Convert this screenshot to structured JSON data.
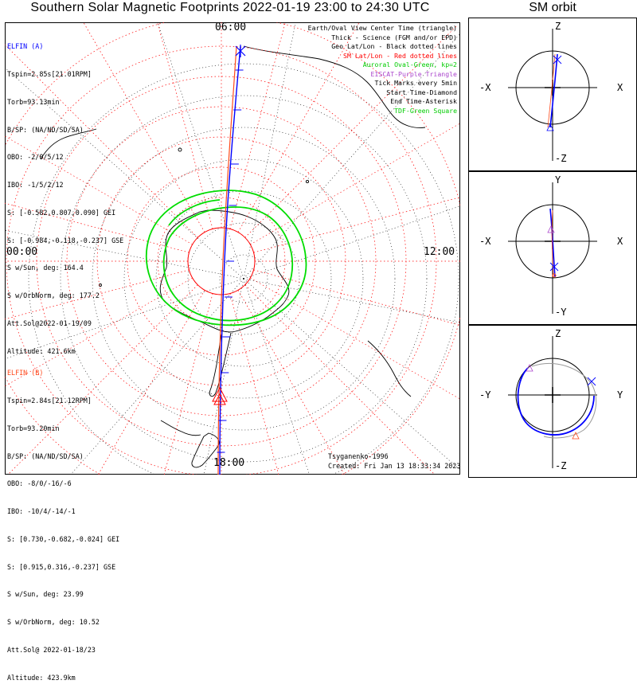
{
  "title": "Southern Solar Magnetic Footprints 2022-01-19 23:00 to 24:30 UTC",
  "sm_orbit_title": "SM orbit",
  "elfin_a": {
    "name": "ELFIN (A)",
    "color": "#0000ff",
    "lines": [
      "Tspin=2.85s[21.01RPM]",
      "Torb=93.13min",
      "B/SP: (NA/ND/SD/SA)",
      "OBO: -2/0/5/12",
      "IBO: -1/5/2/12",
      "S: [-0.582,0.807,0.090] GEI",
      "S: [-0.984,-0.118,-0.237] GSE",
      "S w/Sun, deg: 164.4",
      "S w/OrbNorm, deg: 177.2",
      "Att.Sol@2022-01-19/09",
      "Altitude: 421.6km"
    ]
  },
  "elfin_b": {
    "name": "ELFIN (B)",
    "color": "#ff4a1c",
    "lines": [
      "Tspin=2.84s[21.12RPM]",
      "Torb=93.20min",
      "B/SP: (NA/ND/SD/SA)",
      "OBO: -8/0/-16/-6",
      "IBO: -10/4/-14/-1",
      "S: [0.730,-0.682,-0.024] GEI",
      "S: [0.915,0.316,-0.237] GSE",
      "S w/Sun, deg: 23.99",
      "S w/OrbNorm, deg: 10.52",
      "Att.Sol@ 2022-01-18/23",
      "Altitude: 423.9km"
    ]
  },
  "legend": [
    {
      "text": "Earth/Oval View Center Time (triangle)",
      "color": "#000000"
    },
    {
      "text": "Thick - Science (FGM and/or EPD)",
      "color": "#000000"
    },
    {
      "text": "Geo Lat/Lon - Black dotted lines",
      "color": "#000000"
    },
    {
      "text": "SM Lat/Lon - Red dotted lines",
      "color": "#ff0000"
    },
    {
      "text": "Auroral Oval-Green, kp=2",
      "color": "#00cc00"
    },
    {
      "text": "EISCAT-Purple Triangle",
      "color": "#aa44cc"
    },
    {
      "text": "Tick Marks every 5min",
      "color": "#000000"
    },
    {
      "text": "Start Time-Diamond",
      "color": "#000000"
    },
    {
      "text": "End Time-Asterisk",
      "color": "#000000"
    },
    {
      "text": "TDF-Green Square",
      "color": "#00cc00"
    }
  ],
  "time_labels": {
    "top": "06:00",
    "left": "00:00",
    "right": "12:00",
    "bottom": "18:00"
  },
  "footer": {
    "author": "Tsyganenko-1996",
    "created": "Created: Fri Jan 13 18:33:34 2023"
  },
  "panels": [
    {
      "top": "Z",
      "bottom": "-Z",
      "left": "-X",
      "right": "X"
    },
    {
      "top": "Y",
      "bottom": "-Y",
      "left": "-X",
      "right": "X"
    },
    {
      "top": "Z",
      "bottom": "-Z",
      "left": "-Y",
      "right": "Y"
    }
  ],
  "colors": {
    "sm_grid": "#ff0000",
    "geo_grid": "#000000",
    "auroral_oval": "#00dd00",
    "track_a": "#0000ff",
    "track_b": "#ff4a1c"
  }
}
